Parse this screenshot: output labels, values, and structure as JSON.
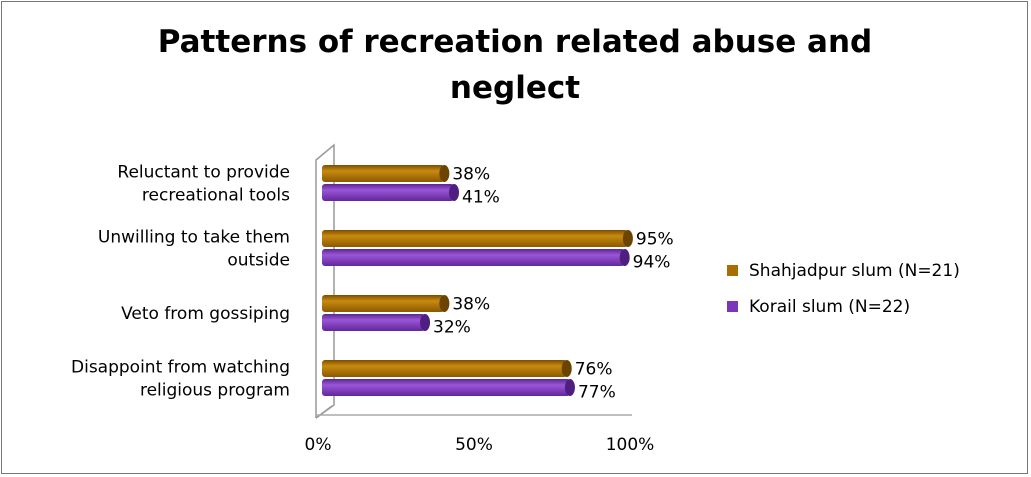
{
  "chart_data": {
    "type": "bar",
    "orientation": "horizontal",
    "style": "3d-cylinder",
    "title": "Patterns of recreation related abuse and neglect",
    "title_lines": [
      "Patterns of recreation related abuse and",
      "neglect"
    ],
    "categories": [
      {
        "lines": [
          "Reluctant to provide",
          "recreational tools"
        ]
      },
      {
        "lines": [
          "Unwilling to take them",
          "outside"
        ]
      },
      {
        "lines": [
          "Veto from gossiping"
        ]
      },
      {
        "lines": [
          "Disappoint from watching",
          "religious program"
        ]
      }
    ],
    "series": [
      {
        "name": "Shahjadpur slum (N=21)",
        "color": "#a86e00",
        "values": [
          38,
          95,
          38,
          76
        ],
        "labels": [
          "38%",
          "95%",
          "38%",
          "76%"
        ]
      },
      {
        "name": "Korail slum  (N=22)",
        "color": "#7a35b8",
        "values": [
          41,
          94,
          32,
          77
        ],
        "labels": [
          "41%",
          "94%",
          "32%",
          "77%"
        ]
      }
    ],
    "xlim": [
      0,
      100
    ],
    "xticks": [
      {
        "value": 0,
        "label": "0%"
      },
      {
        "value": 50,
        "label": "50%"
      },
      {
        "value": 100,
        "label": "100%"
      }
    ],
    "grid": false,
    "legend_position": "right"
  }
}
